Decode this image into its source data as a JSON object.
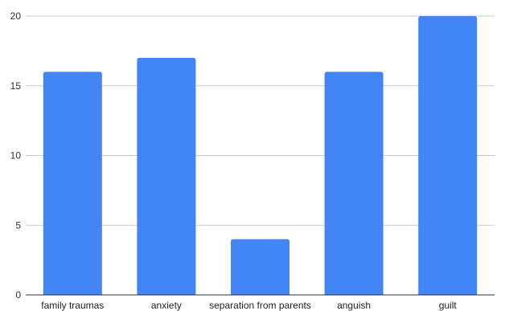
{
  "chart_data": {
    "type": "bar",
    "title": "",
    "xlabel": "",
    "ylabel": "",
    "categories": [
      "family traumas",
      "anxiety",
      "separation from parents",
      "anguish",
      "guilt"
    ],
    "values": [
      16,
      17,
      4,
      16,
      20
    ],
    "ylim": [
      0,
      20
    ],
    "yticks": [
      "0",
      "5",
      "10",
      "15",
      "20"
    ],
    "grid": true,
    "legend": "none",
    "colors": {
      "bar": "#4285F4",
      "grid": "#cccccc",
      "axis": "#333333"
    }
  }
}
